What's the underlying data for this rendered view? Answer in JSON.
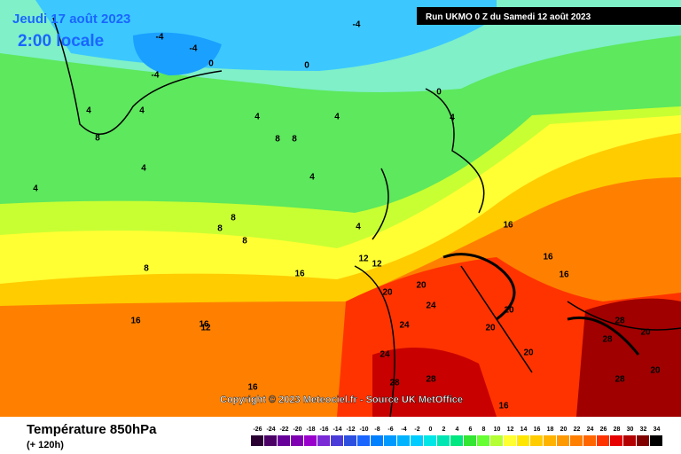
{
  "header": {
    "date": "Jeudi 17 août 2023",
    "time": "2:00 locale",
    "run": "Run UKMO 0 Z du Samedi 12 août 2023"
  },
  "copyright": "Copyright © 2023 Meteociel.fr - Source UK MetOffice",
  "footer": {
    "title": "Température 850hPa",
    "subtitle": "(+ 120h)"
  },
  "colorbar": {
    "values": [
      -26,
      -24,
      -22,
      -20,
      -18,
      -16,
      -14,
      -12,
      -10,
      -8,
      -6,
      -4,
      -2,
      0,
      2,
      4,
      6,
      8,
      10,
      12,
      14,
      16,
      18,
      20,
      22,
      24,
      26,
      28,
      30,
      32,
      34
    ],
    "colors": [
      "#2a0033",
      "#4b0066",
      "#660099",
      "#7f00b2",
      "#9900cc",
      "#7a2bd6",
      "#4b3cd9",
      "#2c4fe0",
      "#1a66ff",
      "#0080ff",
      "#0099ff",
      "#00b3ff",
      "#00ccff",
      "#00e6e6",
      "#00e6b3",
      "#00e680",
      "#33e633",
      "#66ff33",
      "#b3ff33",
      "#ffff33",
      "#ffe600",
      "#ffcc00",
      "#ffb300",
      "#ff9900",
      "#ff8000",
      "#ff6600",
      "#ff3300",
      "#e60000",
      "#b30000",
      "#800000",
      "#000000"
    ]
  },
  "contour_labels": [
    -4,
    -4,
    -4,
    0,
    0,
    0,
    -4,
    4,
    4,
    4,
    8,
    8,
    4,
    4,
    4,
    4,
    8,
    8,
    8,
    4,
    8,
    12,
    12,
    16,
    16,
    16,
    16,
    16,
    16,
    20,
    20,
    24,
    24,
    20,
    20,
    20,
    24,
    28,
    28,
    28,
    28,
    28,
    20,
    16,
    16,
    12,
    8,
    4,
    20
  ]
}
